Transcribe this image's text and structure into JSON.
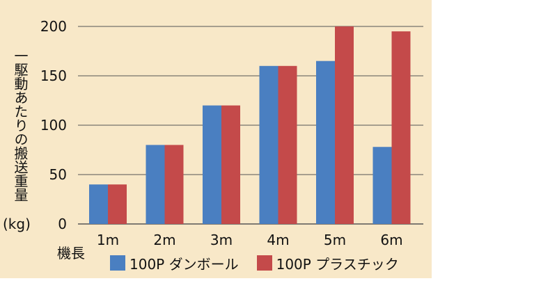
{
  "chart_data": {
    "type": "bar",
    "title": "",
    "ylabel": "一駆動あたりの搬送重量",
    "yunit": "(kg)",
    "xlabel": "機長",
    "categories": [
      "1m",
      "2m",
      "3m",
      "4m",
      "5m",
      "6m"
    ],
    "ylim": [
      0,
      200
    ],
    "yticks": [
      0,
      50,
      100,
      150,
      200
    ],
    "grid": true,
    "legend_position": "bottom",
    "series": [
      {
        "name": "100P ダンボール",
        "color": "#4a7fc1",
        "values": [
          40,
          80,
          120,
          160,
          165,
          78
        ]
      },
      {
        "name": "100P プラスチック",
        "color": "#c44a4a",
        "values": [
          40,
          80,
          120,
          160,
          200,
          195
        ]
      }
    ]
  }
}
